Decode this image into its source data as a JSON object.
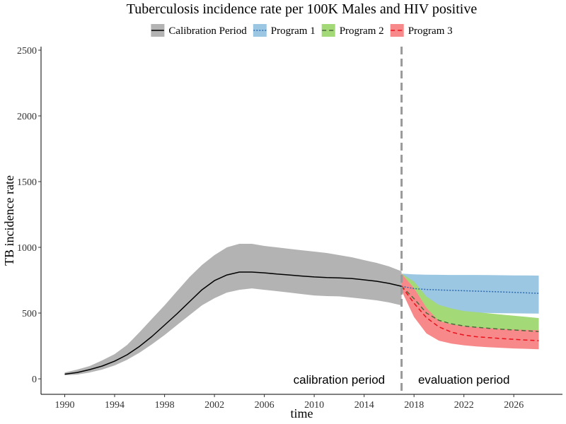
{
  "chart_data": {
    "type": "line",
    "title": "Tuberculosis incidence rate per 100K Males and HIV positive",
    "xlabel": "time",
    "ylabel": "TB incidence rate",
    "xlim": [
      1988.1,
      2029.9
    ],
    "ylim": [
      -118,
      2527
    ],
    "x_ticks": [
      1990,
      1994,
      1998,
      2002,
      2006,
      2010,
      2014,
      2018,
      2022,
      2026
    ],
    "y_ticks": [
      0,
      500,
      1000,
      1500,
      2000,
      2500
    ],
    "grid": false,
    "legend": {
      "position": "top"
    },
    "split_year": 2017,
    "split_line": {
      "color": "#999999",
      "style": "dashed"
    },
    "annotations": [
      {
        "text": "calibration period",
        "side": "left"
      },
      {
        "text": "evaluation period",
        "side": "right"
      }
    ],
    "series": [
      {
        "name": "Calibration Period",
        "fill": "#B3B3B3",
        "line_color": "#000000",
        "line_style": "solid",
        "x": [
          1990,
          1991,
          1992,
          1993,
          1994,
          1995,
          1996,
          1997,
          1998,
          1999,
          2000,
          2001,
          2002,
          2003,
          2004,
          2005,
          2006,
          2007,
          2008,
          2009,
          2010,
          2011,
          2012,
          2013,
          2014,
          2015,
          2016,
          2017
        ],
        "y": [
          35,
          48,
          70,
          97,
          134,
          183,
          247,
          323,
          409,
          495,
          586,
          677,
          747,
          790,
          812,
          812,
          806,
          797,
          790,
          782,
          775,
          770,
          768,
          763,
          753,
          742,
          726,
          704
        ],
        "lower": [
          27,
          32,
          48,
          70,
          102,
          145,
          199,
          263,
          333,
          409,
          484,
          559,
          613,
          656,
          677,
          688,
          677,
          667,
          656,
          645,
          634,
          629,
          627,
          618,
          608,
          597,
          581,
          559
        ],
        "upper": [
          48,
          70,
          97,
          140,
          188,
          258,
          355,
          457,
          559,
          667,
          774,
          866,
          941,
          1000,
          1027,
          1027,
          1011,
          1000,
          989,
          978,
          968,
          957,
          941,
          925,
          903,
          882,
          855,
          818
        ]
      },
      {
        "name": "Program 1",
        "fill": "#9CC7E2",
        "line_color": "#2C6AB1",
        "line_style": "dotted",
        "x": [
          2017,
          2018,
          2019,
          2020,
          2021,
          2022,
          2023,
          2024,
          2025,
          2026,
          2027,
          2028
        ],
        "y": [
          704,
          686,
          680,
          676,
          673,
          670,
          667,
          664,
          661,
          658,
          654,
          650
        ],
        "lower": [
          670,
          600,
          550,
          525,
          513,
          507,
          503,
          501,
          499,
          498,
          497,
          496
        ],
        "upper": [
          800,
          795,
          792,
          791,
          790,
          790,
          790,
          789,
          788,
          787,
          786,
          785
        ]
      },
      {
        "name": "Program 2",
        "fill": "#A3D977",
        "line_color": "#4A6A3A",
        "line_style": "dashed",
        "x": [
          2017,
          2018,
          2019,
          2020,
          2021,
          2022,
          2023,
          2024,
          2025,
          2026,
          2027,
          2028
        ],
        "y": [
          704,
          610,
          500,
          445,
          418,
          402,
          392,
          384,
          377,
          372,
          366,
          360
        ],
        "lower": [
          670,
          530,
          420,
          372,
          352,
          340,
          332,
          327,
          323,
          320,
          318,
          316
        ],
        "upper": [
          800,
          740,
          625,
          562,
          535,
          516,
          507,
          498,
          489,
          480,
          471,
          462
        ]
      },
      {
        "name": "Program 3",
        "fill": "#F8898A",
        "line_color": "#E8131B",
        "line_style": "dashed",
        "x": [
          2017,
          2018,
          2019,
          2020,
          2021,
          2022,
          2023,
          2024,
          2025,
          2026,
          2027,
          2028
        ],
        "y": [
          704,
          575,
          465,
          395,
          355,
          333,
          320,
          313,
          306,
          300,
          295,
          290
        ],
        "lower": [
          670,
          470,
          345,
          290,
          268,
          255,
          246,
          240,
          235,
          231,
          228,
          225
        ],
        "upper": [
          800,
          690,
          540,
          440,
          415,
          400,
          392,
          385,
          379,
          375,
          372,
          370
        ]
      }
    ]
  }
}
